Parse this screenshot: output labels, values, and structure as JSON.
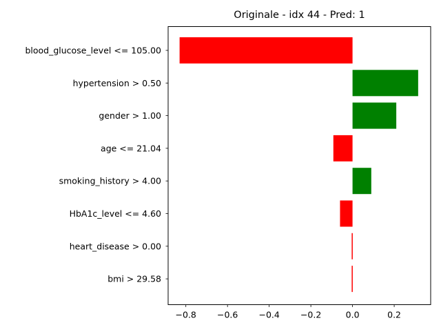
{
  "chart_data": {
    "type": "bar",
    "orientation": "horizontal",
    "title": "Originale - idx 44 - Pred: 1",
    "xlabel": "",
    "ylabel": "",
    "categories": [
      "blood_glucose_level <= 105.00",
      "hypertension > 0.50",
      "gender > 1.00",
      "age <= 21.04",
      "smoking_history > 4.00",
      "HbA1c_level <= 4.60",
      "heart_disease > 0.00",
      "bmi > 29.58"
    ],
    "values": [
      -0.83,
      0.315,
      0.21,
      -0.092,
      0.09,
      -0.06,
      -0.004,
      -0.004
    ],
    "xlim": [
      -0.885,
      0.375
    ],
    "xticks": [
      -0.8,
      -0.6,
      -0.4,
      -0.2,
      0.0,
      0.2
    ],
    "xtick_labels": [
      "−0.8",
      "−0.6",
      "−0.4",
      "−0.2",
      "0.0",
      "0.2"
    ],
    "grid": false,
    "legend": "none",
    "colors": {
      "positive": "#008000",
      "negative": "#ff0000"
    }
  }
}
